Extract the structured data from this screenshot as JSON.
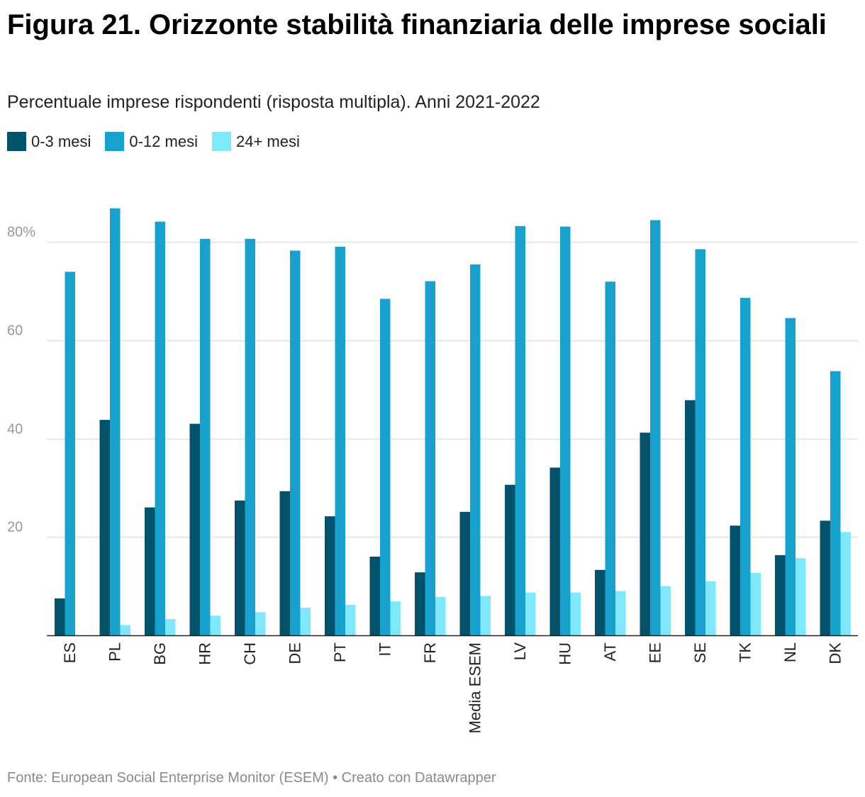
{
  "title": "Figura 21. Orizzonte stabilità finanziaria delle imprese sociali",
  "subtitle": "Percentuale imprese rispondenti (risposta multipla). Anni 2021-2022",
  "source": "Fonte: European Social Enterprise Monitor (ESEM) • Creato con Datawrapper",
  "colors": {
    "series_0_3": "#02526b",
    "series_0_12": "#18a1cd",
    "series_24": "#80e8fd",
    "grid": "#e0e0e0",
    "axis": "#222222",
    "tick_label": "#999999"
  },
  "chart_data": {
    "type": "bar",
    "title": "Figura 21. Orizzonte stabilità finanziaria delle imprese sociali",
    "subtitle": "Percentuale imprese rispondenti (risposta multipla). Anni 2021-2022",
    "xlabel": "",
    "ylabel": "",
    "ylim": [
      0,
      90
    ],
    "yticks": [
      20,
      40,
      60,
      80
    ],
    "ytick_labels": [
      "20",
      "40",
      "60",
      "80%"
    ],
    "grid": true,
    "legend_position": "top-left",
    "categories": [
      "ES",
      "PL",
      "BG",
      "HR",
      "CH",
      "DE",
      "PT",
      "IT",
      "FR",
      "Media ESEM",
      "LV",
      "HU",
      "AT",
      "EE",
      "SE",
      "TK",
      "NL",
      "DK"
    ],
    "series": [
      {
        "name": "0-3 mesi",
        "color": "#02526b",
        "values": [
          7.5,
          43.8,
          26,
          43,
          27.4,
          29.3,
          24.2,
          16,
          12.8,
          25.1,
          30.6,
          34.1,
          13.3,
          41.2,
          47.8,
          22.3,
          16.3,
          23.3
        ]
      },
      {
        "name": "0-12 mesi",
        "color": "#18a1cd",
        "values": [
          73.9,
          86.8,
          84.1,
          80.6,
          80.6,
          78.2,
          79,
          68.4,
          72,
          75.4,
          83.2,
          83.1,
          71.9,
          84.4,
          78.5,
          68.6,
          64.5,
          53.7
        ]
      },
      {
        "name": "24+ mesi",
        "color": "#80e8fd",
        "values": [
          0,
          2.1,
          3.3,
          4,
          4.7,
          5.6,
          6.2,
          6.9,
          7.8,
          8,
          8.7,
          8.7,
          9,
          10,
          11,
          12.7,
          15.7,
          21
        ]
      }
    ]
  }
}
